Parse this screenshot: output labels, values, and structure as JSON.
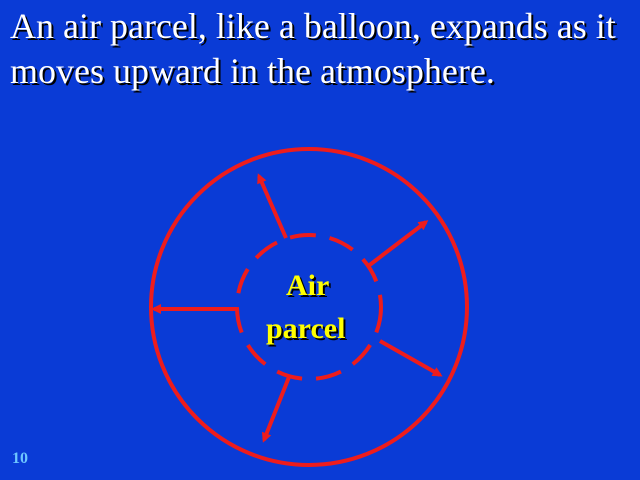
{
  "slide": {
    "title": "An air parcel, like a balloon, expands as it moves upward in the atmosphere.",
    "page_number": "10"
  },
  "diagram": {
    "parcel_label_line1": "Air",
    "parcel_label_line2": "parcel"
  },
  "colors": {
    "background": "#0a3bd6",
    "circle_and_arrows": "#ee1c1c",
    "label": "#ffff00",
    "title": "#ffffff",
    "page_number": "#6ec6ff"
  }
}
